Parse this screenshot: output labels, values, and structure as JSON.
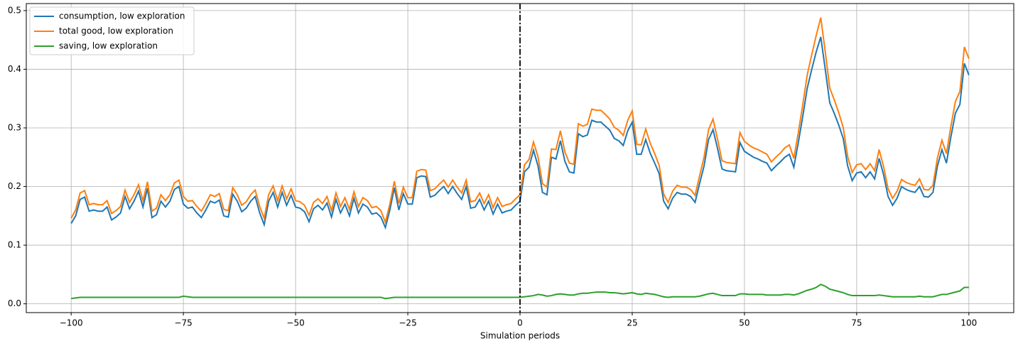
{
  "chart_data": {
    "type": "line",
    "xlabel": "Simulation periods",
    "x": [
      -100,
      -99,
      -98,
      -97,
      -96,
      -95,
      -94,
      -93,
      -92,
      -91,
      -90,
      -89,
      -88,
      -87,
      -86,
      -85,
      -84,
      -83,
      -82,
      -81,
      -80,
      -79,
      -78,
      -77,
      -76,
      -75,
      -74,
      -73,
      -72,
      -71,
      -70,
      -69,
      -68,
      -67,
      -66,
      -65,
      -64,
      -63,
      -62,
      -61,
      -60,
      -59,
      -58,
      -57,
      -56,
      -55,
      -54,
      -53,
      -52,
      -51,
      -50,
      -49,
      -48,
      -47,
      -46,
      -45,
      -44,
      -43,
      -42,
      -41,
      -40,
      -39,
      -38,
      -37,
      -36,
      -35,
      -34,
      -33,
      -32,
      -31,
      -30,
      -29,
      -28,
      -27,
      -26,
      -25,
      -24,
      -23,
      -22,
      -21,
      -20,
      -19,
      -18,
      -17,
      -16,
      -15,
      -14,
      -13,
      -12,
      -11,
      -10,
      -9,
      -8,
      -7,
      -6,
      -5,
      -4,
      -3,
      -2,
      -1,
      0,
      1,
      2,
      3,
      4,
      5,
      6,
      7,
      8,
      9,
      10,
      11,
      12,
      13,
      14,
      15,
      16,
      17,
      18,
      19,
      20,
      21,
      22,
      23,
      24,
      25,
      26,
      27,
      28,
      29,
      30,
      31,
      32,
      33,
      34,
      35,
      36,
      37,
      38,
      39,
      40,
      41,
      42,
      43,
      44,
      45,
      46,
      47,
      48,
      49,
      50,
      51,
      52,
      53,
      54,
      55,
      56,
      57,
      58,
      59,
      60,
      61,
      62,
      63,
      64,
      65,
      66,
      67,
      68,
      69,
      70,
      71,
      72,
      73,
      74,
      75,
      76,
      77,
      78,
      79,
      80,
      81,
      82,
      83,
      84,
      85,
      86,
      87,
      88,
      89,
      90,
      91,
      92,
      93,
      94,
      95,
      96,
      97,
      98,
      99,
      100
    ],
    "series": [
      {
        "name": "consumption, low exploration",
        "color": "#1f77b4",
        "values": [
          0.137,
          0.15,
          0.178,
          0.182,
          0.158,
          0.16,
          0.158,
          0.158,
          0.165,
          0.143,
          0.148,
          0.155,
          0.183,
          0.162,
          0.175,
          0.192,
          0.165,
          0.197,
          0.147,
          0.152,
          0.175,
          0.165,
          0.175,
          0.195,
          0.2,
          0.17,
          0.163,
          0.165,
          0.155,
          0.147,
          0.16,
          0.175,
          0.172,
          0.177,
          0.15,
          0.148,
          0.187,
          0.175,
          0.157,
          0.163,
          0.175,
          0.183,
          0.155,
          0.135,
          0.175,
          0.19,
          0.165,
          0.19,
          0.168,
          0.185,
          0.165,
          0.163,
          0.157,
          0.14,
          0.162,
          0.168,
          0.16,
          0.172,
          0.148,
          0.178,
          0.155,
          0.17,
          0.15,
          0.18,
          0.155,
          0.17,
          0.165,
          0.153,
          0.155,
          0.148,
          0.13,
          0.16,
          0.198,
          0.16,
          0.188,
          0.17,
          0.17,
          0.215,
          0.218,
          0.217,
          0.182,
          0.185,
          0.193,
          0.2,
          0.188,
          0.2,
          0.188,
          0.178,
          0.2,
          0.163,
          0.165,
          0.178,
          0.16,
          0.175,
          0.153,
          0.17,
          0.155,
          0.158,
          0.16,
          0.168,
          0.175,
          0.225,
          0.233,
          0.262,
          0.235,
          0.19,
          0.186,
          0.25,
          0.247,
          0.278,
          0.243,
          0.225,
          0.223,
          0.29,
          0.285,
          0.288,
          0.313,
          0.31,
          0.31,
          0.303,
          0.296,
          0.282,
          0.278,
          0.27,
          0.295,
          0.31,
          0.255,
          0.255,
          0.28,
          0.257,
          0.24,
          0.222,
          0.175,
          0.162,
          0.18,
          0.19,
          0.187,
          0.187,
          0.183,
          0.173,
          0.205,
          0.235,
          0.28,
          0.297,
          0.265,
          0.23,
          0.227,
          0.226,
          0.225,
          0.275,
          0.26,
          0.255,
          0.25,
          0.247,
          0.243,
          0.24,
          0.227,
          0.235,
          0.242,
          0.25,
          0.255,
          0.233,
          0.275,
          0.32,
          0.368,
          0.4,
          0.43,
          0.455,
          0.4,
          0.343,
          0.325,
          0.305,
          0.282,
          0.235,
          0.21,
          0.223,
          0.225,
          0.215,
          0.225,
          0.213,
          0.248,
          0.22,
          0.183,
          0.168,
          0.18,
          0.2,
          0.195,
          0.192,
          0.19,
          0.2,
          0.183,
          0.182,
          0.19,
          0.235,
          0.263,
          0.24,
          0.285,
          0.325,
          0.34,
          0.41,
          0.39
        ]
      },
      {
        "name": "total good, low exploration",
        "color": "#ff7f0e",
        "values": [
          0.146,
          0.16,
          0.189,
          0.193,
          0.169,
          0.171,
          0.169,
          0.169,
          0.176,
          0.154,
          0.159,
          0.166,
          0.194,
          0.173,
          0.186,
          0.203,
          0.176,
          0.208,
          0.158,
          0.163,
          0.186,
          0.176,
          0.186,
          0.206,
          0.211,
          0.183,
          0.175,
          0.176,
          0.166,
          0.158,
          0.171,
          0.186,
          0.183,
          0.188,
          0.161,
          0.159,
          0.198,
          0.186,
          0.168,
          0.174,
          0.186,
          0.194,
          0.166,
          0.146,
          0.186,
          0.201,
          0.176,
          0.201,
          0.179,
          0.196,
          0.176,
          0.174,
          0.168,
          0.151,
          0.173,
          0.179,
          0.171,
          0.183,
          0.159,
          0.189,
          0.166,
          0.181,
          0.161,
          0.191,
          0.166,
          0.181,
          0.176,
          0.164,
          0.166,
          0.159,
          0.139,
          0.17,
          0.209,
          0.171,
          0.199,
          0.181,
          0.181,
          0.226,
          0.229,
          0.228,
          0.193,
          0.196,
          0.204,
          0.211,
          0.199,
          0.211,
          0.199,
          0.189,
          0.211,
          0.174,
          0.176,
          0.189,
          0.171,
          0.186,
          0.164,
          0.181,
          0.166,
          0.169,
          0.171,
          0.179,
          0.186,
          0.237,
          0.246,
          0.276,
          0.251,
          0.205,
          0.199,
          0.264,
          0.263,
          0.295,
          0.259,
          0.24,
          0.238,
          0.307,
          0.303,
          0.306,
          0.332,
          0.33,
          0.33,
          0.323,
          0.315,
          0.301,
          0.296,
          0.287,
          0.313,
          0.329,
          0.272,
          0.271,
          0.298,
          0.274,
          0.256,
          0.236,
          0.187,
          0.173,
          0.192,
          0.202,
          0.199,
          0.199,
          0.195,
          0.185,
          0.218,
          0.25,
          0.297,
          0.315,
          0.281,
          0.244,
          0.241,
          0.24,
          0.239,
          0.292,
          0.277,
          0.271,
          0.266,
          0.263,
          0.259,
          0.255,
          0.242,
          0.25,
          0.257,
          0.266,
          0.271,
          0.248,
          0.292,
          0.34,
          0.391,
          0.425,
          0.458,
          0.488,
          0.43,
          0.368,
          0.348,
          0.326,
          0.301,
          0.251,
          0.224,
          0.237,
          0.239,
          0.229,
          0.239,
          0.227,
          0.263,
          0.234,
          0.196,
          0.18,
          0.192,
          0.212,
          0.207,
          0.204,
          0.202,
          0.213,
          0.195,
          0.194,
          0.202,
          0.249,
          0.279,
          0.256,
          0.303,
          0.345,
          0.362,
          0.438,
          0.418
        ]
      },
      {
        "name": "saving, low exploration",
        "color": "#2ca02c",
        "values": [
          0.009,
          0.01,
          0.011,
          0.011,
          0.011,
          0.011,
          0.011,
          0.011,
          0.011,
          0.011,
          0.011,
          0.011,
          0.011,
          0.011,
          0.011,
          0.011,
          0.011,
          0.011,
          0.011,
          0.011,
          0.011,
          0.011,
          0.011,
          0.011,
          0.011,
          0.013,
          0.012,
          0.011,
          0.011,
          0.011,
          0.011,
          0.011,
          0.011,
          0.011,
          0.011,
          0.011,
          0.011,
          0.011,
          0.011,
          0.011,
          0.011,
          0.011,
          0.011,
          0.011,
          0.011,
          0.011,
          0.011,
          0.011,
          0.011,
          0.011,
          0.011,
          0.011,
          0.011,
          0.011,
          0.011,
          0.011,
          0.011,
          0.011,
          0.011,
          0.011,
          0.011,
          0.011,
          0.011,
          0.011,
          0.011,
          0.011,
          0.011,
          0.011,
          0.011,
          0.011,
          0.009,
          0.01,
          0.011,
          0.011,
          0.011,
          0.011,
          0.011,
          0.011,
          0.011,
          0.011,
          0.011,
          0.011,
          0.011,
          0.011,
          0.011,
          0.011,
          0.011,
          0.011,
          0.011,
          0.011,
          0.011,
          0.011,
          0.011,
          0.011,
          0.011,
          0.011,
          0.011,
          0.011,
          0.011,
          0.011,
          0.011,
          0.012,
          0.013,
          0.014,
          0.016,
          0.015,
          0.013,
          0.014,
          0.016,
          0.017,
          0.016,
          0.015,
          0.015,
          0.017,
          0.018,
          0.018,
          0.019,
          0.02,
          0.02,
          0.02,
          0.019,
          0.019,
          0.018,
          0.017,
          0.018,
          0.019,
          0.017,
          0.016,
          0.018,
          0.017,
          0.016,
          0.014,
          0.012,
          0.011,
          0.012,
          0.012,
          0.012,
          0.012,
          0.012,
          0.012,
          0.013,
          0.015,
          0.017,
          0.018,
          0.016,
          0.014,
          0.014,
          0.014,
          0.014,
          0.017,
          0.017,
          0.016,
          0.016,
          0.016,
          0.016,
          0.015,
          0.015,
          0.015,
          0.015,
          0.016,
          0.016,
          0.015,
          0.017,
          0.02,
          0.023,
          0.025,
          0.028,
          0.033,
          0.03,
          0.025,
          0.023,
          0.021,
          0.019,
          0.016,
          0.014,
          0.014,
          0.014,
          0.014,
          0.014,
          0.014,
          0.015,
          0.014,
          0.013,
          0.012,
          0.012,
          0.012,
          0.012,
          0.012,
          0.012,
          0.013,
          0.012,
          0.012,
          0.012,
          0.014,
          0.016,
          0.016,
          0.018,
          0.02,
          0.022,
          0.028,
          0.028
        ]
      }
    ],
    "vline": 0,
    "xlim": [
      -110,
      110
    ],
    "ylim": [
      -0.015,
      0.512
    ],
    "xticks": [
      {
        "value": -100,
        "label": "−100"
      },
      {
        "value": -75,
        "label": "−75"
      },
      {
        "value": -50,
        "label": "−50"
      },
      {
        "value": -25,
        "label": "−25"
      },
      0,
      25,
      50,
      75,
      100
    ],
    "yticks": [
      {
        "value": 0,
        "label": "0.0"
      },
      0.1,
      0.2,
      0.3,
      0.4,
      0.5
    ],
    "grid": true,
    "legend": "upper left"
  }
}
